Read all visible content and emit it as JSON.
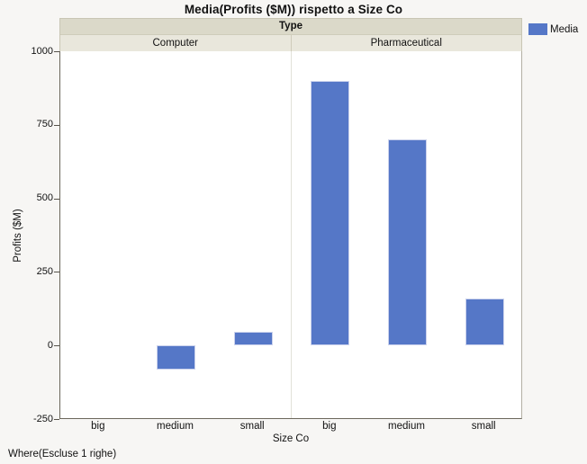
{
  "title": "Media(Profits ($M)) rispetto a Size Co",
  "footer": "Where(Escluse 1 righe)",
  "legend": {
    "label": "Media",
    "swatch_color": "#5577C7"
  },
  "group_header": {
    "title": "Type",
    "groups": [
      "Computer",
      "Pharmaceutical"
    ]
  },
  "x_axis": {
    "title": "Size Co",
    "categories": [
      "big",
      "medium",
      "small"
    ]
  },
  "y_axis": {
    "title": "Profits ($M)",
    "ticks": [
      -250,
      0,
      250,
      500,
      750,
      1000
    ]
  },
  "chart_data": {
    "type": "bar",
    "title": "Media(Profits ($M)) rispetto a Size Co",
    "xlabel": "Size Co",
    "ylabel": "Profits ($M)",
    "ylim": [
      -250,
      1000
    ],
    "yticks": [
      -250,
      0,
      250,
      500,
      750,
      1000
    ],
    "grid": false,
    "legend_position": "top-right",
    "legend_entries": [
      "Media"
    ],
    "bar_color": "#5577C7",
    "categories": [
      "big",
      "medium",
      "small"
    ],
    "series": [
      {
        "name": "Computer",
        "values": [
          null,
          -83,
          45
        ]
      },
      {
        "name": "Pharmaceutical",
        "values": [
          900,
          700,
          160
        ]
      }
    ]
  }
}
